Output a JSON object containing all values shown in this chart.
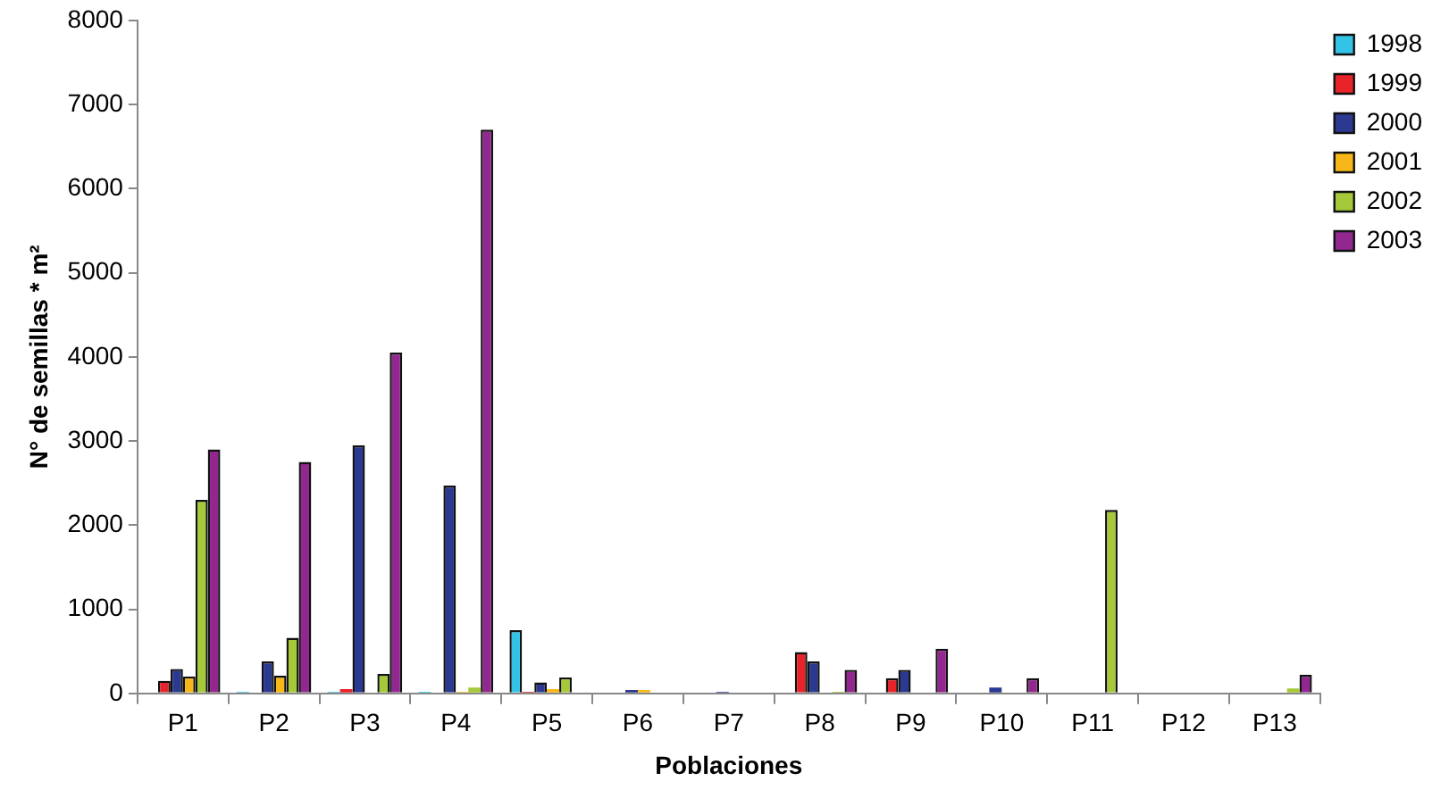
{
  "chart_data": {
    "type": "bar",
    "xlabel": "Poblaciones",
    "ylabel": "N° de semillas * m²",
    "categories": [
      "P1",
      "P2",
      "P3",
      "P4",
      "P5",
      "P6",
      "P7",
      "P8",
      "P9",
      "P10",
      "P11",
      "P12",
      "P13"
    ],
    "series": [
      {
        "name": "1998",
        "color": "#33c3e6",
        "values": [
          null,
          20,
          20,
          20,
          750,
          10,
          null,
          null,
          null,
          null,
          null,
          null,
          null
        ]
      },
      {
        "name": "1999",
        "color": "#e8232a",
        "values": [
          150,
          null,
          50,
          null,
          20,
          null,
          null,
          490,
          180,
          null,
          null,
          null,
          null
        ]
      },
      {
        "name": "2000",
        "color": "#2b3990",
        "values": [
          290,
          380,
          2950,
          2470,
          130,
          40,
          20,
          380,
          280,
          70,
          null,
          null,
          null
        ]
      },
      {
        "name": "2001",
        "color": "#f7b718",
        "values": [
          200,
          210,
          10,
          20,
          50,
          40,
          null,
          null,
          null,
          null,
          null,
          null,
          null
        ]
      },
      {
        "name": "2002",
        "color": "#a6c939",
        "values": [
          2300,
          660,
          230,
          70,
          190,
          null,
          null,
          20,
          null,
          null,
          2180,
          null,
          60
        ]
      },
      {
        "name": "2003",
        "color": "#92278f",
        "values": [
          2900,
          2750,
          4050,
          6700,
          null,
          null,
          null,
          280,
          530,
          180,
          null,
          null,
          220
        ]
      }
    ],
    "ylim": [
      0,
      8000
    ],
    "yticks": [
      0,
      1000,
      2000,
      3000,
      4000,
      5000,
      6000,
      7000,
      8000
    ],
    "grid": false,
    "legend": "top right"
  }
}
